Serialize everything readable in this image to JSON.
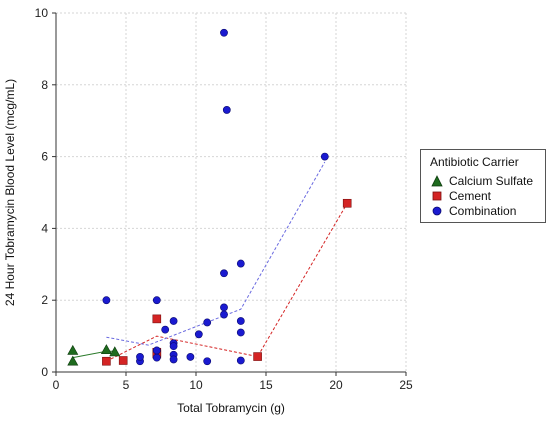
{
  "chart_data": {
    "type": "scatter",
    "xlabel": "Total Tobramycin (g)",
    "ylabel": "24 Hour Tobramycin Blood Level (mcg/mL)",
    "xlim": [
      0,
      25
    ],
    "ylim": [
      0,
      10
    ],
    "xticks": [
      "0",
      "5",
      "10",
      "15",
      "20",
      "25"
    ],
    "yticks": [
      "0",
      "2",
      "4",
      "6",
      "8",
      "10"
    ],
    "grid": true,
    "legend": {
      "title": "Antibiotic Carrier",
      "placement": "right"
    },
    "series": [
      {
        "name": "Calcium Sulfate",
        "marker": "triangle",
        "color": "#1e6b1e",
        "points": [
          [
            1.2,
            0.3
          ],
          [
            1.2,
            0.6
          ],
          [
            3.6,
            0.62
          ],
          [
            4.2,
            0.56
          ]
        ],
        "trend": [
          [
            1.2,
            0.4
          ],
          [
            3.6,
            0.58
          ],
          [
            4.2,
            0.58
          ]
        ],
        "trend_style": "solid"
      },
      {
        "name": "Cement",
        "marker": "square",
        "color": "#d42424",
        "points": [
          [
            3.6,
            0.3
          ],
          [
            4.8,
            0.32
          ],
          [
            7.2,
            1.48
          ],
          [
            7.2,
            0.55
          ],
          [
            7.2,
            0.5
          ],
          [
            14.4,
            0.43
          ],
          [
            20.8,
            4.7
          ]
        ],
        "trend": [
          [
            3.6,
            0.3
          ],
          [
            7.2,
            1.0
          ],
          [
            14.4,
            0.43
          ],
          [
            20.8,
            4.7
          ]
        ],
        "trend_style": "dashed"
      },
      {
        "name": "Combination",
        "marker": "circle",
        "color": "#1a1ad0",
        "points": [
          [
            3.6,
            2.0
          ],
          [
            6.0,
            0.3
          ],
          [
            6.0,
            0.42
          ],
          [
            7.2,
            2.0
          ],
          [
            7.2,
            0.4
          ],
          [
            7.2,
            0.6
          ],
          [
            7.8,
            1.18
          ],
          [
            8.4,
            1.42
          ],
          [
            8.4,
            0.8
          ],
          [
            8.4,
            0.72
          ],
          [
            8.4,
            0.48
          ],
          [
            8.4,
            0.35
          ],
          [
            9.6,
            0.42
          ],
          [
            10.2,
            1.05
          ],
          [
            10.8,
            1.38
          ],
          [
            10.8,
            0.3
          ],
          [
            12.0,
            9.45
          ],
          [
            12.0,
            2.75
          ],
          [
            12.0,
            1.8
          ],
          [
            12.0,
            1.6
          ],
          [
            12.2,
            7.3
          ],
          [
            13.2,
            3.02
          ],
          [
            13.2,
            1.42
          ],
          [
            13.2,
            1.1
          ],
          [
            13.2,
            0.32
          ],
          [
            19.2,
            6.0
          ]
        ],
        "trend": [
          [
            3.6,
            0.97
          ],
          [
            6.6,
            0.75
          ],
          [
            13.2,
            1.75
          ],
          [
            19.2,
            5.85
          ]
        ],
        "trend_style": "dashed"
      }
    ]
  }
}
